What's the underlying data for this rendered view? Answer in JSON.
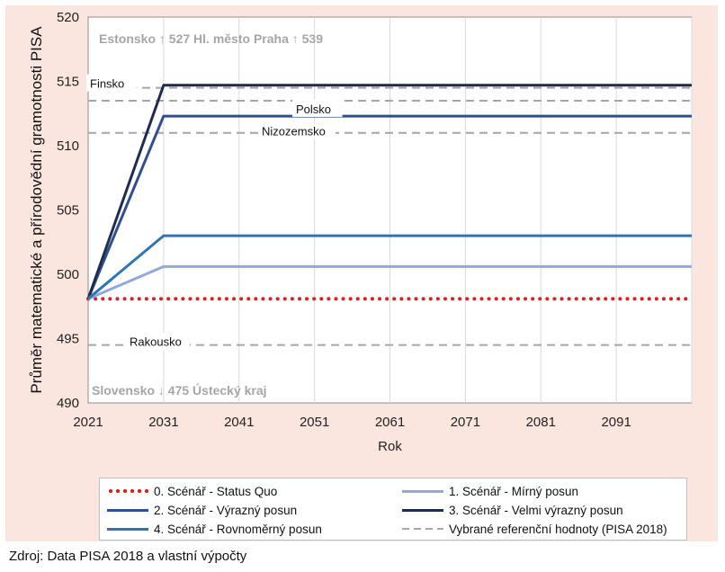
{
  "chart_data": {
    "type": "line",
    "ylabel": "Průměr matematické a přírodovědní gramotnosti PISA",
    "xlabel": "Rok",
    "xlim": [
      2021,
      2101
    ],
    "ylim": [
      490,
      520
    ],
    "xticks": [
      "2021",
      "2031",
      "2041",
      "2051",
      "2061",
      "2071",
      "2081",
      "2091"
    ],
    "yticks": [
      "490",
      "495",
      "500",
      "505",
      "510",
      "515",
      "520"
    ],
    "grid": "vertical",
    "legend_position": "bottom",
    "series": [
      {
        "name": "0. Scénář - Status Quo",
        "color": "#e0201b",
        "style": "dotted",
        "points": [
          [
            2021,
            498.1
          ],
          [
            2101,
            498.1
          ]
        ]
      },
      {
        "name": "1. Scénář - Mírný posun",
        "color": "#8eaadb",
        "style": "solid",
        "points": [
          [
            2021,
            498.1
          ],
          [
            2031,
            500.6
          ],
          [
            2101,
            500.6
          ]
        ]
      },
      {
        "name": "2. Scénář - Výrazný posun",
        "color": "#2f4f8f",
        "style": "solid",
        "points": [
          [
            2021,
            498.1
          ],
          [
            2031,
            512.3
          ],
          [
            2101,
            512.3
          ]
        ]
      },
      {
        "name": "3. Scénář - Velmi výrazný posun",
        "color": "#1f2d4d",
        "style": "solid",
        "points": [
          [
            2021,
            498.1
          ],
          [
            2031,
            514.7
          ],
          [
            2101,
            514.7
          ]
        ]
      },
      {
        "name": "4. Scénář - Rovnoměrný posun",
        "color": "#2e75b6",
        "style": "solid",
        "points": [
          [
            2021,
            498.1
          ],
          [
            2031,
            503.0
          ],
          [
            2101,
            503.0
          ]
        ]
      },
      {
        "name": "Vybrané referenční hodnoty (PISA 2018)",
        "color": "#a6a6a6",
        "style": "dashed",
        "points": []
      }
    ],
    "reference_lines": [
      {
        "label": "Finsko",
        "value": 514.5
      },
      {
        "label": "Polsko",
        "value": 513.5
      },
      {
        "label": "Nizozemsko",
        "value": 511.0
      },
      {
        "label": "Rakousko",
        "value": 494.5
      }
    ],
    "annotations": [
      {
        "text": "Estonsko ↑ 527 Hl. město Praha ↑ 539",
        "position": "top-left"
      },
      {
        "text": "Slovensko ↓ 475 Ústecký kraj",
        "position": "bottom-left"
      }
    ]
  },
  "legend": {
    "items": [
      {
        "label": "0. Scénář - Status Quo",
        "style": "dotted",
        "color": "#e0201b"
      },
      {
        "label": "1. Scénář - Mírný posun",
        "style": "solid",
        "color": "#8eaadb"
      },
      {
        "label": "2. Scénář - Výrazný posun",
        "style": "solid",
        "color": "#2f4f8f"
      },
      {
        "label": "3. Scénář - Velmi výrazný posun",
        "style": "solid",
        "color": "#1f2d4d"
      },
      {
        "label": "4. Scénář - Rovnoměrný posun",
        "style": "solid",
        "color": "#2e75b6"
      },
      {
        "label": "Vybrané referenční hodnoty (PISA 2018)",
        "style": "dashed",
        "color": "#a6a6a6"
      }
    ]
  },
  "source": "Zdroj: Data PISA 2018 a vlastní výpočty"
}
